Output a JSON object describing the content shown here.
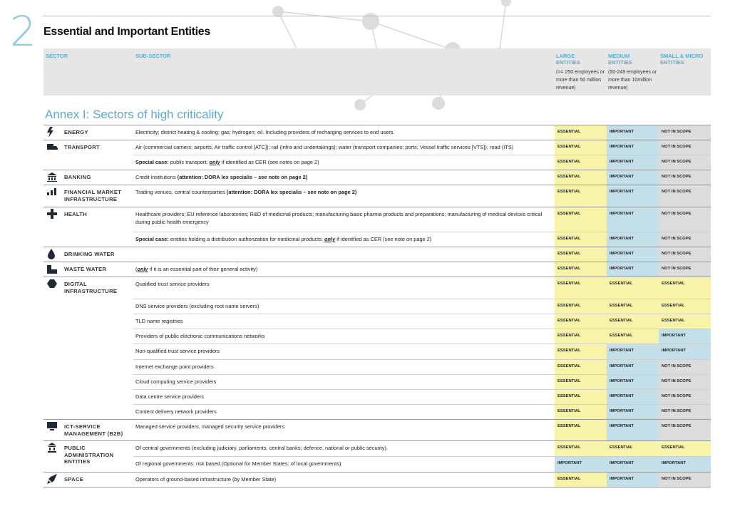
{
  "page_number": "2",
  "title": "Essential and Important Entities",
  "header": {
    "sector": "SECTOR",
    "sub_sector": "SUB-SECTOR",
    "columns": [
      {
        "name": "LARGE ENTITIES",
        "note": "(>= 250 employees or more than 50 million revenue)"
      },
      {
        "name": "MEDIUM ENTITIES",
        "note": "(50-249 employees or more than 10million revenue)"
      },
      {
        "name": "SMALL & MICRO ENTITIES"
      }
    ]
  },
  "annex": "Annex I: Sectors of high criticality",
  "status_colors": {
    "ESSENTIAL": "#f7f3a9",
    "IMPORTANT": "#c2dfea",
    "NOT IN SCOPE": "#dcdcdc"
  },
  "sectors": [
    {
      "name": "ENERGY",
      "rows": [
        {
          "segments": [
            {
              "text": "Electricity; district heating & cooling; gas; hydrogen; oil. Including providers of recharging services to end users."
            }
          ],
          "statuses": [
            "ESSENTIAL",
            "IMPORTANT",
            "NOT IN SCOPE"
          ]
        }
      ]
    },
    {
      "name": "TRANSPORT",
      "rows": [
        {
          "segments": [
            {
              "text": "Air (commercial carriers; airports; Air traffic control [ATC]); rail (infra and undertakings); water (transport companies; ports; Vessel traffic services [VTS]); road (ITS)"
            }
          ],
          "statuses": [
            "ESSENTIAL",
            "IMPORTANT",
            "NOT IN SCOPE"
          ]
        },
        {
          "segments": [
            {
              "text": "Special case:",
              "style": "bold"
            },
            {
              "text": " public transport: "
            },
            {
              "text": "only",
              "style": "bold-underline"
            },
            {
              "text": " if identified as CER (see notes on page 2)"
            }
          ],
          "statuses": [
            "ESSENTIAL",
            "IMPORTANT",
            "NOT IN SCOPE"
          ]
        }
      ]
    },
    {
      "name": "BANKING",
      "rows": [
        {
          "segments": [
            {
              "text": "Credit institutions "
            },
            {
              "text": "(attention: DORA lex specialis – see note on page 2)",
              "style": "bold"
            }
          ],
          "statuses": [
            "ESSENTIAL",
            "IMPORTANT",
            "NOT IN SCOPE"
          ]
        }
      ]
    },
    {
      "name": "FINANCIAL MARKET INFRASTRUCTURE",
      "rows": [
        {
          "segments": [
            {
              "text": "Trading venues, central counterparties "
            },
            {
              "text": "(attention: DORA lex specialis – see note on page 2)",
              "style": "bold"
            }
          ],
          "statuses": [
            "ESSENTIAL",
            "IMPORTANT",
            "NOT IN SCOPE"
          ]
        }
      ]
    },
    {
      "name": "HEALTH",
      "rows": [
        {
          "segments": [
            {
              "text": "Healthcare providers; EU reference laboratories; R&D of medicinal products; manufacturing basic pharma products and preparations; manufacturing of medical devices critical during public health emergency"
            }
          ],
          "statuses": [
            "ESSENTIAL",
            "IMPORTANT",
            "NOT IN SCOPE"
          ]
        },
        {
          "segments": [
            {
              "text": "Special case:",
              "style": "bold"
            },
            {
              "text": " entities holding a distribution authorization for medicinal products: "
            },
            {
              "text": "only",
              "style": "bold-underline"
            },
            {
              "text": " if identified as CER (see note on page 2)"
            }
          ],
          "statuses": [
            "ESSENTIAL",
            "IMPORTANT",
            "NOT IN SCOPE"
          ]
        }
      ]
    },
    {
      "name": "DRINKING WATER",
      "rows": [
        {
          "segments": [],
          "statuses": [
            "ESSENTIAL",
            "IMPORTANT",
            "NOT IN SCOPE"
          ]
        }
      ]
    },
    {
      "name": "WASTE WATER",
      "rows": [
        {
          "segments": [
            {
              "text": "("
            },
            {
              "text": "only",
              "style": "bold-underline"
            },
            {
              "text": " if it is an essential part of their general activity)"
            }
          ],
          "statuses": [
            "ESSENTIAL",
            "IMPORTANT",
            "NOT IN SCOPE"
          ]
        }
      ]
    },
    {
      "name": "DIGITAL INFRASTRUCTURE",
      "rows": [
        {
          "segments": [
            {
              "text": "Qualified trust service providers"
            }
          ],
          "statuses": [
            "ESSENTIAL",
            "ESSENTIAL",
            "ESSENTIAL"
          ]
        },
        {
          "segments": [
            {
              "text": "DNS service providers (excluding root name servers)"
            }
          ],
          "statuses": [
            "ESSENTIAL",
            "ESSENTIAL",
            "ESSENTIAL"
          ]
        },
        {
          "segments": [
            {
              "text": "TLD name registries"
            }
          ],
          "statuses": [
            "ESSENTIAL",
            "ESSENTIAL",
            "ESSENTIAL"
          ]
        },
        {
          "segments": [
            {
              "text": "Providers of public electronic communications networks"
            }
          ],
          "statuses": [
            "ESSENTIAL",
            "ESSENTIAL",
            "IMPORTANT"
          ]
        },
        {
          "segments": [
            {
              "text": "Non-qualified trust service providers"
            }
          ],
          "statuses": [
            "ESSENTIAL",
            "IMPORTANT",
            "IMPORTANT"
          ]
        },
        {
          "segments": [
            {
              "text": "Internet exchange point providers"
            }
          ],
          "statuses": [
            "ESSENTIAL",
            "IMPORTANT",
            "NOT IN SCOPE"
          ]
        },
        {
          "segments": [
            {
              "text": "Cloud computing service providers"
            }
          ],
          "statuses": [
            "ESSENTIAL",
            "IMPORTANT",
            "NOT IN SCOPE"
          ]
        },
        {
          "segments": [
            {
              "text": "Data centre service providers"
            }
          ],
          "statuses": [
            "ESSENTIAL",
            "IMPORTANT",
            "NOT IN SCOPE"
          ]
        },
        {
          "segments": [
            {
              "text": "Content delivery network providers"
            }
          ],
          "statuses": [
            "ESSENTIAL",
            "IMPORTANT",
            "NOT IN SCOPE"
          ]
        }
      ]
    },
    {
      "name": "ICT-SERVICE MANAGEMENT (B2B)",
      "rows": [
        {
          "segments": [
            {
              "text": "Managed service providers, managed security service providers"
            }
          ],
          "statuses": [
            "ESSENTIAL",
            "IMPORTANT",
            "NOT IN SCOPE"
          ]
        }
      ]
    },
    {
      "name": "PUBLIC ADMINISTRATION ENTITIES",
      "rows": [
        {
          "segments": [
            {
              "text": "Of central governments (excluding judiciary, parliaments, central banks; defence, national or public security)."
            }
          ],
          "statuses": [
            "ESSENTIAL",
            "ESSENTIAL",
            "ESSENTIAL"
          ]
        },
        {
          "segments": [
            {
              "text": "Of regional governments: risk based.(Optional for Member States: of local governments)"
            }
          ],
          "statuses": [
            "IMPORTANT",
            "IMPORTANT",
            "IMPORTANT"
          ]
        }
      ]
    },
    {
      "name": "SPACE",
      "rows": [
        {
          "segments": [
            {
              "text": "Operators of ground-based infrastructure (by Member State)"
            }
          ],
          "statuses": [
            "ESSENTIAL",
            "IMPORTANT",
            "NOT IN SCOPE"
          ]
        }
      ]
    }
  ]
}
